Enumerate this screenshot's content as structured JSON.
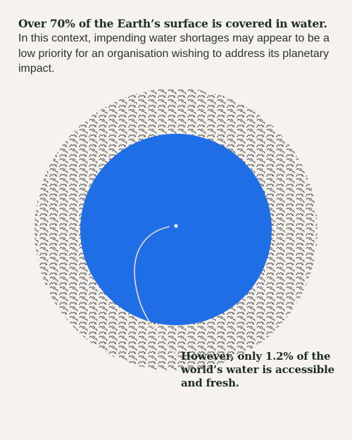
{
  "headline": "Over 70% of the Earth’s surface is covered in water.",
  "body": "In this context, impending water shortages may appear to be a low priority for an organisation wishing to address its planetary impact.",
  "callout": "However, only 1.2% of the world’s water is accessible and fresh.",
  "colors": {
    "background": "#f6f3ee",
    "water_blue": "#1f6ee6",
    "texture_ink": "#2e2e2e",
    "pointer_line": "#f0d8d8",
    "text": "#1e2b22"
  },
  "figures": {
    "earth_surface_water_percent": 70,
    "accessible_fresh_water_percent": 1.2
  }
}
